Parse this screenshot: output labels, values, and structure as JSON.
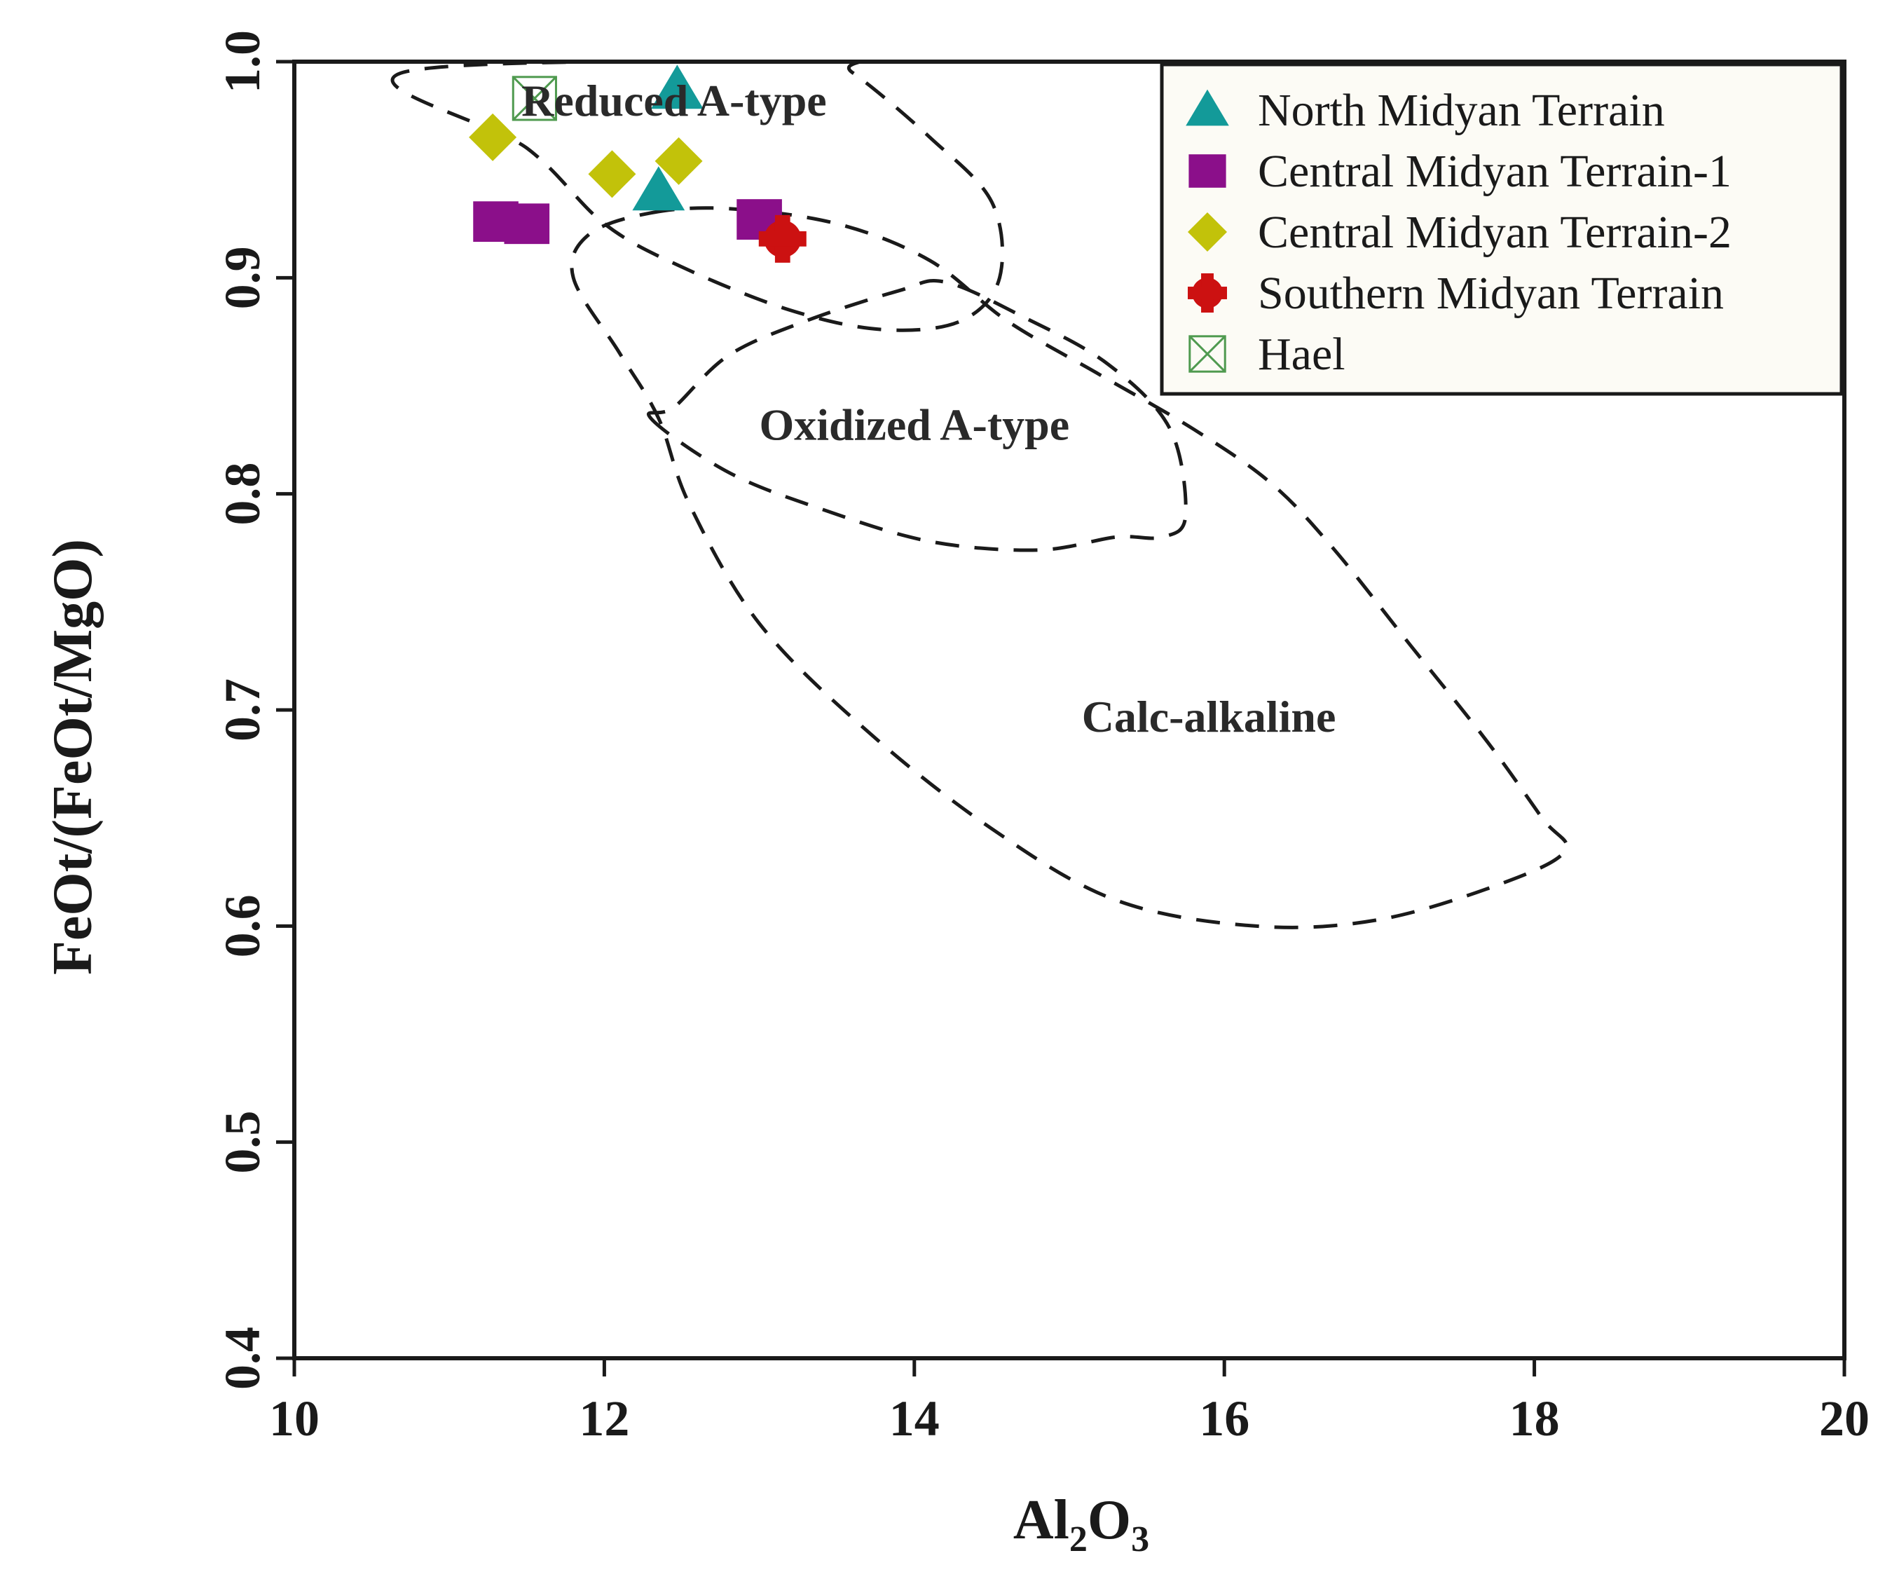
{
  "chart_data": {
    "type": "scatter",
    "xlabel": "Al2O3",
    "xlabel_main": "Al",
    "xlabel_sub1": "2",
    "xlabel_mid": "O",
    "xlabel_sub2": "3",
    "ylabel": "FeOt/(FeOt/MgO)",
    "xlim": [
      10,
      20
    ],
    "ylim": [
      0.4,
      1.0
    ],
    "xticks": [
      10,
      12,
      14,
      16,
      18,
      20
    ],
    "yticks": [
      "0.4",
      "0.5",
      "0.6",
      "0.7",
      "0.8",
      "0.9",
      "1.0"
    ],
    "grid": false,
    "legend_position": "top-right",
    "regions": [
      {
        "name": "Reduced A-type",
        "label_at": [
          12.45,
          0.975
        ],
        "path": [
          [
            10.7,
            0.995
          ],
          [
            11.5,
            0.96
          ],
          [
            12.0,
            0.925
          ],
          [
            12.5,
            0.905
          ],
          [
            13.2,
            0.885
          ],
          [
            13.8,
            0.876
          ],
          [
            14.3,
            0.88
          ],
          [
            14.55,
            0.9
          ],
          [
            14.5,
            0.935
          ],
          [
            14.1,
            0.965
          ],
          [
            13.6,
            0.995
          ],
          [
            13.4,
            1.0
          ]
        ]
      },
      {
        "name": "Oxidized A-type",
        "label_at": [
          14.0,
          0.825
        ],
        "path": [
          [
            12.3,
            0.835
          ],
          [
            12.8,
            0.81
          ],
          [
            13.4,
            0.793
          ],
          [
            14.1,
            0.778
          ],
          [
            14.8,
            0.774
          ],
          [
            15.3,
            0.78
          ],
          [
            15.6,
            0.78
          ],
          [
            15.75,
            0.79
          ],
          [
            15.65,
            0.83
          ],
          [
            15.25,
            0.86
          ],
          [
            14.7,
            0.882
          ],
          [
            14.2,
            0.898
          ],
          [
            13.9,
            0.894
          ],
          [
            13.3,
            0.88
          ],
          [
            12.8,
            0.864
          ],
          [
            12.45,
            0.84
          ]
        ]
      },
      {
        "name": "Calc-alkaline",
        "label_at": [
          15.9,
          0.69
        ],
        "path": [
          [
            12.3,
            0.93
          ],
          [
            12.8,
            0.932
          ],
          [
            13.5,
            0.925
          ],
          [
            14.1,
            0.908
          ],
          [
            14.6,
            0.88
          ],
          [
            15.2,
            0.855
          ],
          [
            15.8,
            0.83
          ],
          [
            16.3,
            0.805
          ],
          [
            16.7,
            0.775
          ],
          [
            17.2,
            0.73
          ],
          [
            17.7,
            0.685
          ],
          [
            18.05,
            0.65
          ],
          [
            18.2,
            0.635
          ],
          [
            17.8,
            0.62
          ],
          [
            17.0,
            0.603
          ],
          [
            16.2,
            0.6
          ],
          [
            15.3,
            0.612
          ],
          [
            14.5,
            0.645
          ],
          [
            13.7,
            0.69
          ],
          [
            13.0,
            0.74
          ],
          [
            12.55,
            0.795
          ],
          [
            12.35,
            0.835
          ],
          [
            12.1,
            0.865
          ],
          [
            11.8,
            0.9
          ],
          [
            11.9,
            0.92
          ]
        ]
      }
    ],
    "series": [
      {
        "name": "North Midyan Terrain",
        "marker": "triangle",
        "color": "#139a99",
        "points": [
          [
            12.47,
            0.987
          ],
          [
            12.35,
            0.94
          ]
        ]
      },
      {
        "name": "Central Midyan Terrain-1",
        "marker": "square",
        "color": "#8b0f8a",
        "points": [
          [
            11.3,
            0.926
          ],
          [
            11.5,
            0.925
          ],
          [
            13.0,
            0.927
          ]
        ]
      },
      {
        "name": "Central Midyan Terrain-2",
        "marker": "diamond",
        "color": "#c2c20a",
        "points": [
          [
            11.28,
            0.965
          ],
          [
            12.05,
            0.948
          ],
          [
            12.48,
            0.954
          ]
        ]
      },
      {
        "name": "Southern Midyan Terrain",
        "marker": "cross",
        "color": "#cc1111",
        "points": [
          [
            13.15,
            0.918
          ]
        ]
      },
      {
        "name": "Hael",
        "marker": "boxed-x",
        "color": "#4f9a4f",
        "points": [
          [
            11.55,
            0.983
          ]
        ]
      }
    ]
  }
}
